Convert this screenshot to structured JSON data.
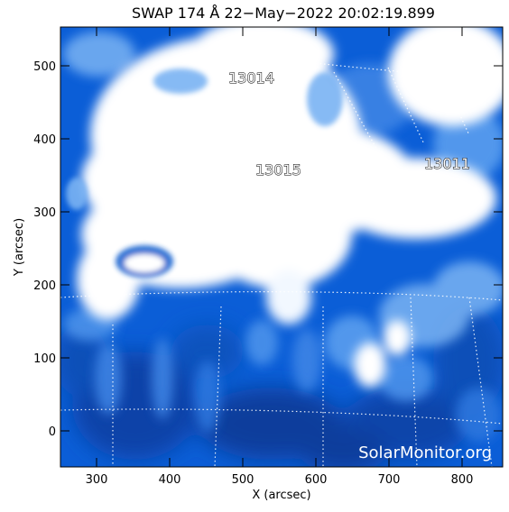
{
  "header": {
    "title": "SWAP 174 Å 22−May−2022 20:02:19.899"
  },
  "axes": {
    "x_label": "X (arcsec)",
    "y_label": "Y (arcsec)",
    "x_ticks": [
      "300",
      "400",
      "500",
      "600",
      "700",
      "800"
    ],
    "y_ticks": [
      "500",
      "400",
      "300",
      "200",
      "100",
      "0"
    ],
    "x_range_arcsec": [
      255,
      860
    ],
    "y_range_arcsec": [
      -50,
      555
    ]
  },
  "regions": [
    {
      "id": "13014",
      "label": "13014"
    },
    {
      "id": "13015",
      "label": "13015"
    },
    {
      "id": "13011",
      "label": "13011"
    }
  ],
  "watermark": {
    "text": "SolarMonitor.org"
  },
  "colors": {
    "background": "#ffffff",
    "disk_blue": "#0a5ed6",
    "dark_blue": "#0a3fa0",
    "bright": "#ffffff"
  }
}
